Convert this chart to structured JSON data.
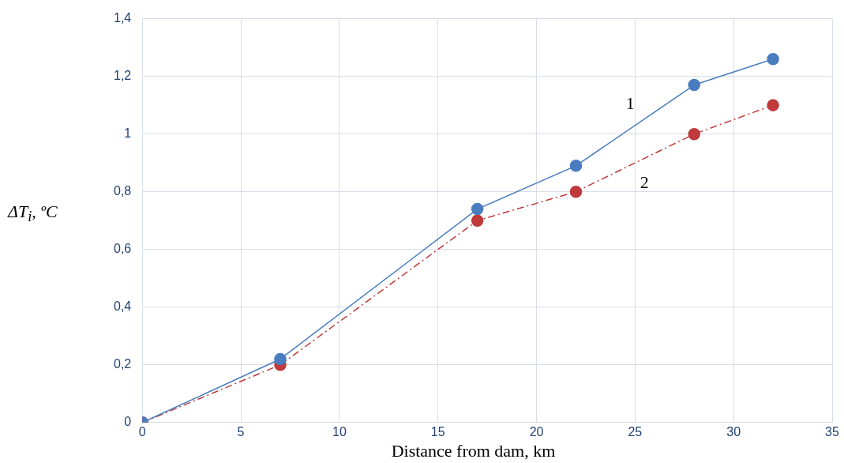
{
  "chart_data": {
    "type": "line",
    "xlabel": "Distance from dam, km",
    "ylabel": "ΔT$_{i}$, ºC",
    "x": [
      0,
      7,
      17,
      22,
      28,
      32
    ],
    "series": [
      {
        "name": "1",
        "color": "#4a7cc0",
        "values": [
          0,
          0.22,
          0.74,
          0.89,
          1.17,
          1.26
        ],
        "line_style": "solid"
      },
      {
        "name": "2",
        "color": "#c0393b",
        "values": [
          0,
          0.2,
          0.7,
          0.8,
          1.0,
          1.1
        ],
        "line_style": "dashed"
      }
    ],
    "xlim": [
      0,
      35
    ],
    "xticks": [
      0,
      5,
      10,
      15,
      20,
      25,
      30,
      35
    ],
    "ylim": [
      0,
      1.4
    ],
    "yticks": [
      0,
      {
        "value": 0.2,
        "label": "0,2"
      },
      {
        "value": 0.4,
        "label": "0,4"
      },
      {
        "value": 0.6,
        "label": "0,6"
      },
      {
        "value": 0.8,
        "label": "0,8"
      },
      1,
      {
        "value": 1.2,
        "label": "1,2"
      },
      {
        "value": 1.4,
        "label": "1,4"
      }
    ],
    "grid": true,
    "legend": false,
    "marker": "circle"
  }
}
